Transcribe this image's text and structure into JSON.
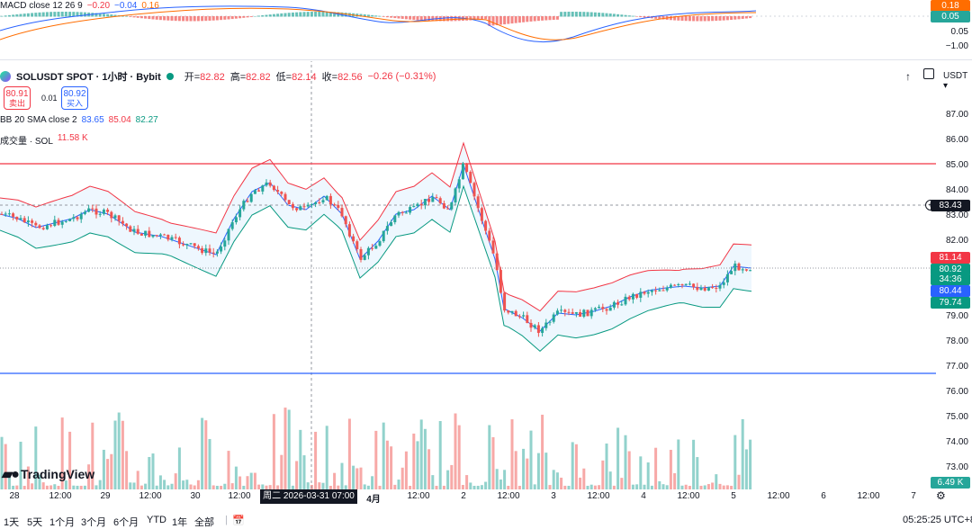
{
  "macd": {
    "name": "MACD close 12 26 9",
    "hist": "−0.20",
    "macd": "−0.04",
    "signal": "0.16",
    "axis_labels": [
      "0.05",
      "−1.00"
    ],
    "tag_signal": "0.18",
    "tag_macd": "0.05"
  },
  "header": {
    "symbol": "SOLUSDT SPOT · 1小时 · Bybit",
    "open_label": "开=",
    "open": "82.82",
    "high_label": "高=",
    "high": "82.82",
    "low_label": "低=",
    "low": "82.14",
    "close_label": "收=",
    "close": "82.56",
    "change": "−0.26 (−0.31%)",
    "currency": "USDT"
  },
  "trade": {
    "sell_price": "80.91",
    "sell_label": "卖出",
    "spread": "0.01",
    "buy_price": "80.92",
    "buy_label": "买入"
  },
  "bb": {
    "name": "BB 20 SMA close 2",
    "basis": "83.65",
    "upper": "85.04",
    "lower": "82.27"
  },
  "volume": {
    "name": "成交量 · SOL",
    "value": "11.58 K",
    "tag": "6.49 K"
  },
  "price_axis": {
    "labels": [
      "87.00",
      "86.00",
      "85.00",
      "84.00",
      "83.00",
      "82.00",
      "79.00",
      "78.00",
      "77.00",
      "76.00",
      "75.00",
      "74.00",
      "73.00"
    ],
    "crosshair_price": "83.43",
    "tag_upper": "81.14",
    "tag_last": "80.92",
    "tag_countdown": "34:36",
    "tag_basis": "80.44",
    "tag_lower": "79.74"
  },
  "time_axis": {
    "labels": [
      "28",
      "12:00",
      "29",
      "12:00",
      "30",
      "12:00",
      "4月",
      "12:00",
      "2",
      "12:00",
      "3",
      "12:00",
      "4",
      "12:00",
      "5",
      "12:00",
      "6",
      "12:00",
      "7"
    ],
    "hover_date": "周二 2026-03-31  07:00"
  },
  "toolbar": {
    "ranges": [
      "1天",
      "5天",
      "1个月",
      "3个月",
      "6个月",
      "YTD",
      "1年",
      "全部"
    ],
    "clock": "05:25:25 UTC+8"
  },
  "logo": "TradingView",
  "colors": {
    "up": "#26a69a",
    "down": "#ef5350",
    "bb_upper": "#f23645",
    "bb_basis": "#2962ff",
    "bb_lower": "#089981",
    "hline_red": "#f23645",
    "hline_blue": "#2962ff"
  }
}
